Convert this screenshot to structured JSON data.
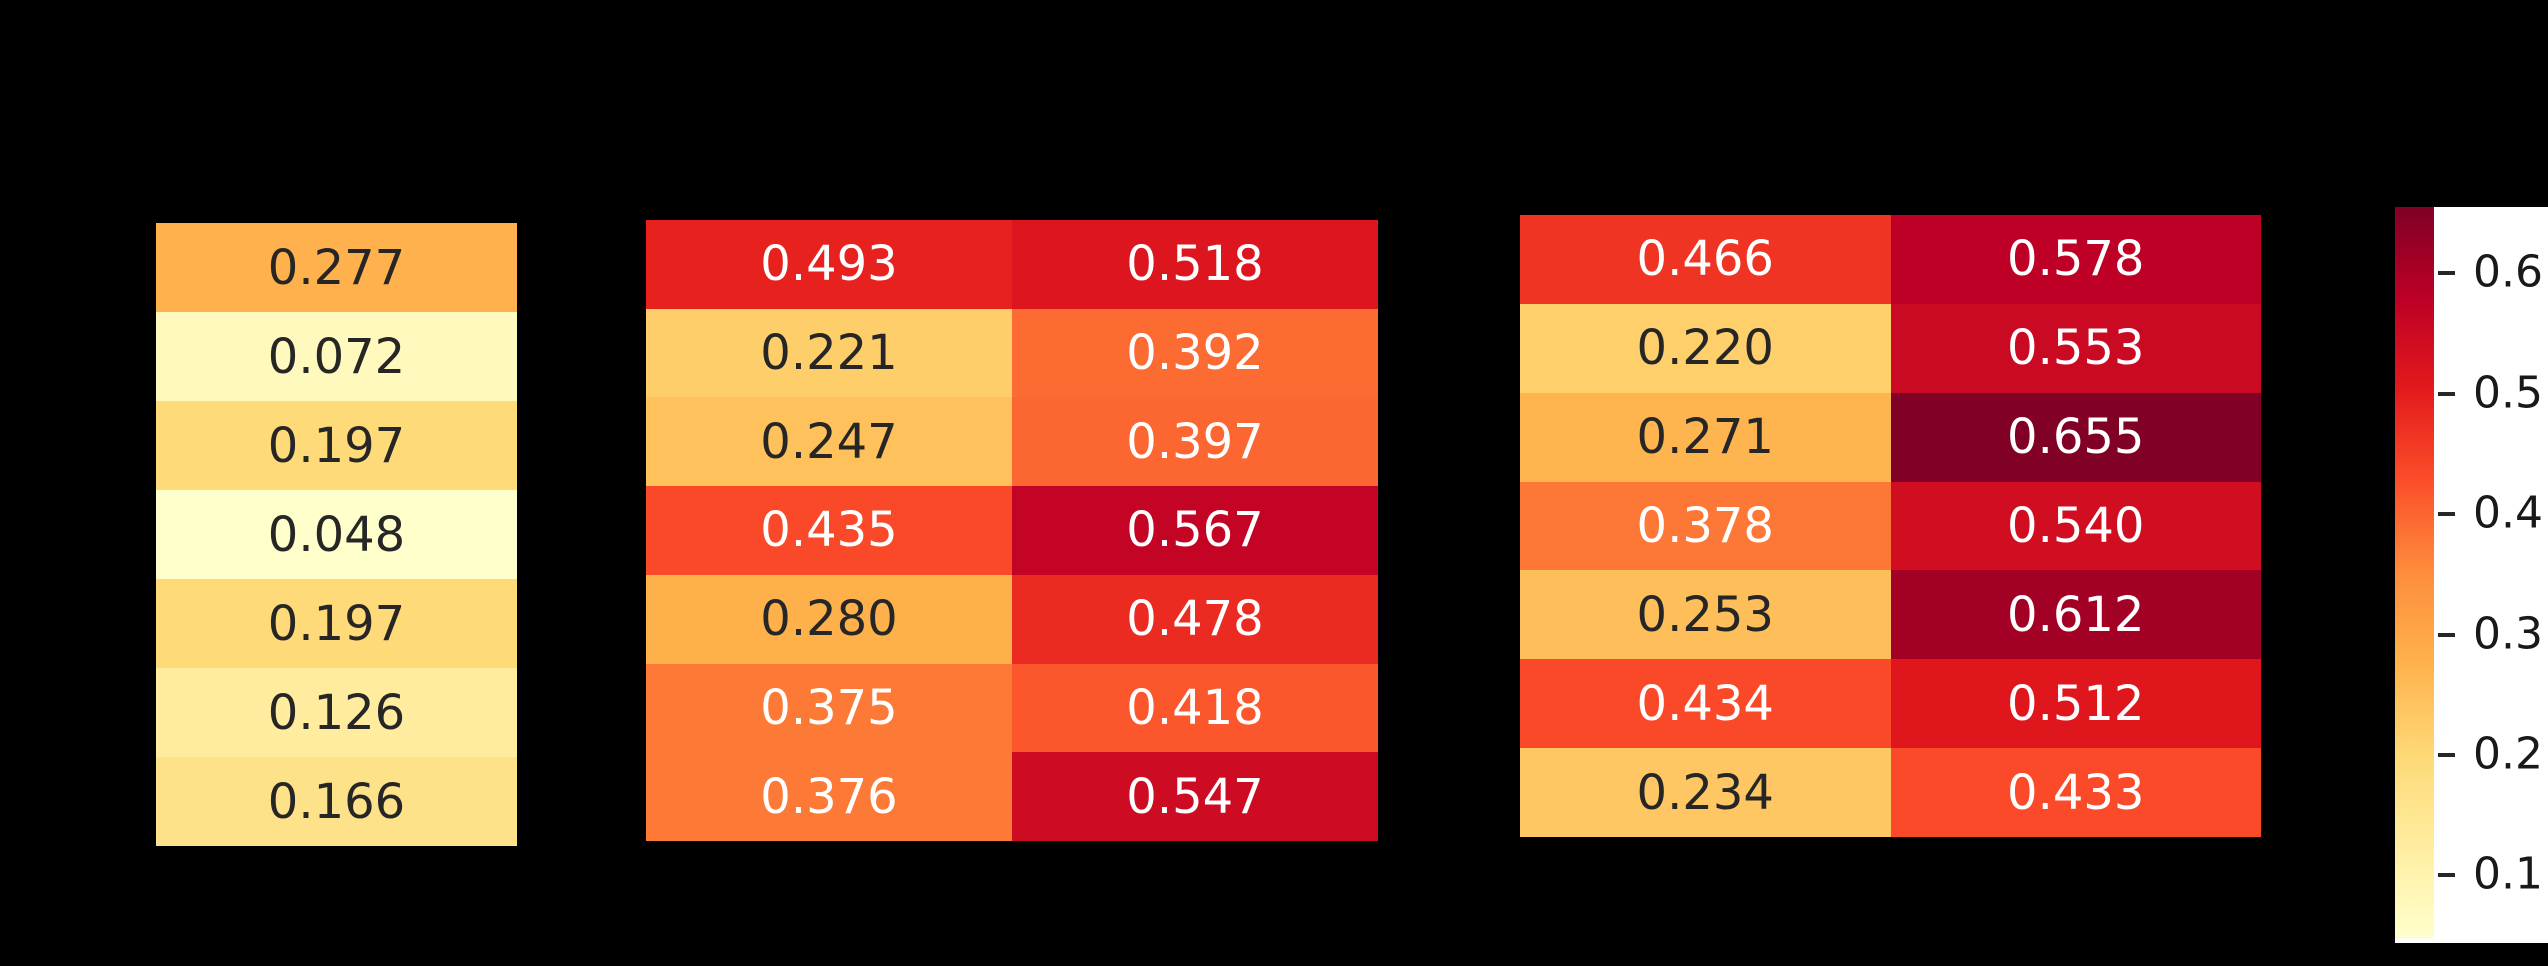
{
  "figure": {
    "background": "#000000",
    "colorbar_panel_background": "#ffffff",
    "annotation_dark_text": "#262626",
    "annotation_light_text": "#ffffff",
    "tick_color": "#191919"
  },
  "chart_data": {
    "type": "heatmap",
    "colormap": "YlOrRd",
    "colormap_anchors": [
      "#ffffcc",
      "#ffeda0",
      "#fed976",
      "#feb24c",
      "#fd8d3c",
      "#fc4e2a",
      "#e31a1c",
      "#bd0026",
      "#800026"
    ],
    "vmin": 0.048,
    "vmax": 0.655,
    "annotation_format": "3-decimals",
    "grid": false,
    "panels": [
      {
        "name": "heatmap-1",
        "columns": 1,
        "rows": 7,
        "values": [
          [
            0.277
          ],
          [
            0.072
          ],
          [
            0.197
          ],
          [
            0.048
          ],
          [
            0.197
          ],
          [
            0.126
          ],
          [
            0.166
          ]
        ]
      },
      {
        "name": "heatmap-2",
        "columns": 2,
        "rows": 7,
        "values": [
          [
            0.493,
            0.518
          ],
          [
            0.221,
            0.392
          ],
          [
            0.247,
            0.397
          ],
          [
            0.435,
            0.567
          ],
          [
            0.28,
            0.478
          ],
          [
            0.375,
            0.418
          ],
          [
            0.376,
            0.547
          ]
        ]
      },
      {
        "name": "heatmap-3",
        "columns": 2,
        "rows": 7,
        "values": [
          [
            0.466,
            0.578
          ],
          [
            0.22,
            0.553
          ],
          [
            0.271,
            0.655
          ],
          [
            0.378,
            0.54
          ],
          [
            0.253,
            0.612
          ],
          [
            0.434,
            0.512
          ],
          [
            0.234,
            0.433
          ]
        ]
      }
    ],
    "colorbar": {
      "orientation": "vertical",
      "ticks": [
        0.6,
        0.5,
        0.4,
        0.3,
        0.2,
        0.1
      ],
      "tick_labels": [
        "0.6",
        "0.5",
        "0.4",
        "0.3",
        "0.2",
        "0.1"
      ]
    }
  }
}
